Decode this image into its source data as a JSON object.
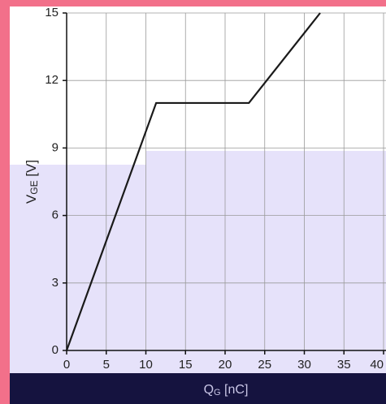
{
  "chart_data": {
    "type": "line",
    "xlabel": [
      "Q",
      "G",
      " [nC]"
    ],
    "ylabel": [
      "V",
      "GE",
      " [V]"
    ],
    "x": [
      0,
      11.3,
      23,
      32
    ],
    "series": [
      {
        "color": "#1a1a1a",
        "values": [
          0,
          11,
          11,
          15
        ]
      }
    ],
    "xlim": [
      0,
      40
    ],
    "xticks": [
      0,
      5,
      10,
      15,
      20,
      25,
      30,
      35,
      40
    ],
    "ylim": [
      0,
      15
    ],
    "yticks": [
      0,
      3,
      6,
      9,
      12,
      15
    ],
    "grid": true
  }
}
